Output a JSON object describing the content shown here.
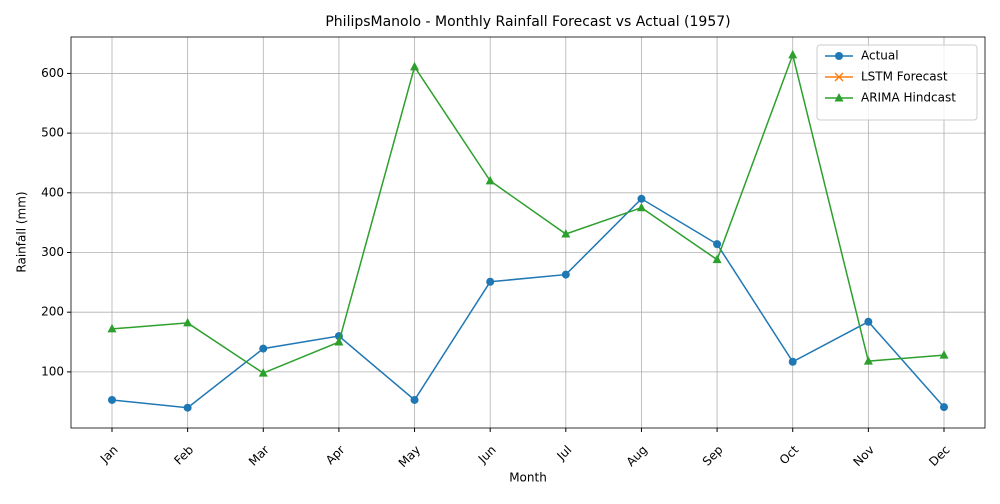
{
  "chart_data": {
    "type": "line",
    "title": "PhilipsManolo - Monthly Rainfall Forecast vs Actual (1957)",
    "xlabel": "Month",
    "ylabel": "Rainfall (mm)",
    "categories": [
      "Jan",
      "Feb",
      "Mar",
      "Apr",
      "May",
      "Jun",
      "Jul",
      "Aug",
      "Sep",
      "Oct",
      "Nov",
      "Dec"
    ],
    "series": [
      {
        "name": "Actual",
        "color": "#1f77b4",
        "marker": "o",
        "values": [
          53,
          40,
          139,
          160,
          53,
          251,
          263,
          390,
          314,
          117,
          184,
          41
        ]
      },
      {
        "name": "LSTM Forecast",
        "color": "#ff7f0e",
        "marker": "x",
        "values": [
          null,
          null,
          null,
          null,
          null,
          null,
          null,
          null,
          null,
          null,
          null,
          null
        ]
      },
      {
        "name": "ARIMA Hindcast",
        "color": "#2ca02c",
        "marker": "^",
        "values": [
          172,
          182,
          98,
          150,
          611,
          420,
          331,
          375,
          288,
          631,
          118,
          128
        ]
      }
    ],
    "ylim": [
      6,
      661
    ],
    "yticks": [
      100,
      200,
      300,
      400,
      500,
      600
    ],
    "grid": true,
    "legend": "upper right"
  }
}
